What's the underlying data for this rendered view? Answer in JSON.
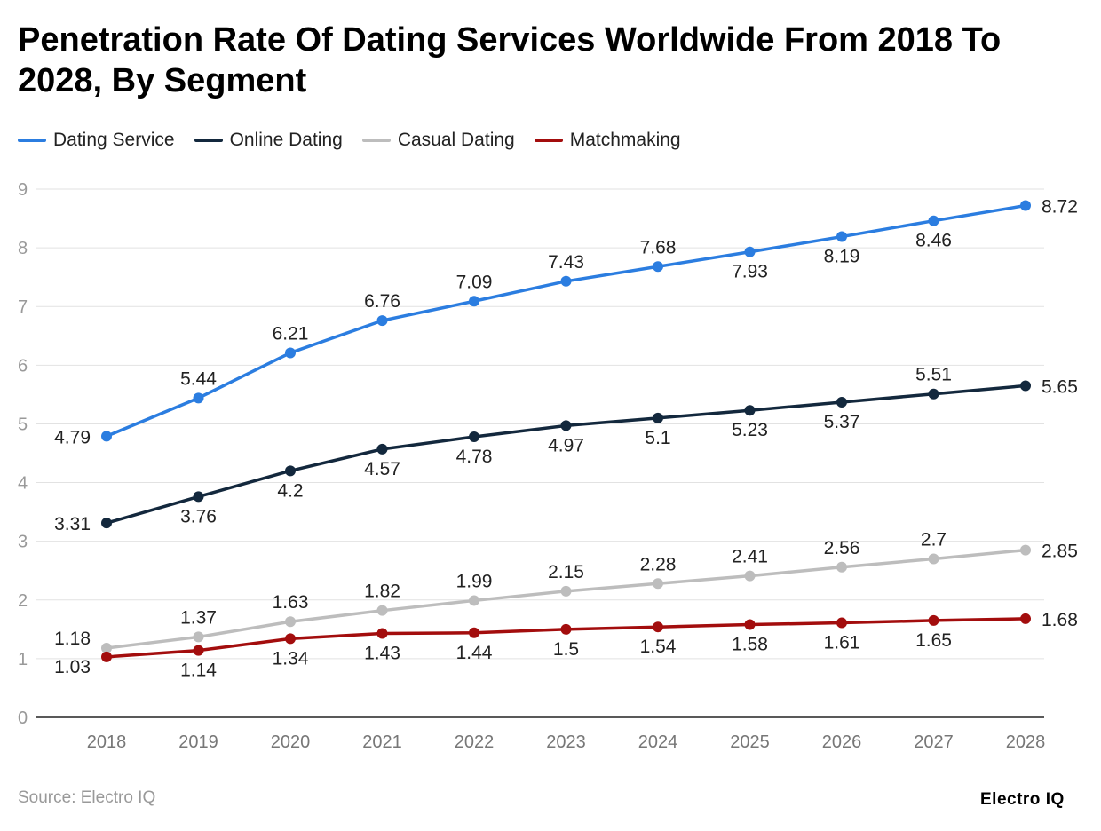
{
  "chart_data": {
    "type": "line",
    "title": "Penetration Rate Of Dating Services Worldwide From 2018 To 2028, By Segment",
    "xlabel": "",
    "ylabel": "",
    "categories": [
      "2018",
      "2019",
      "2020",
      "2021",
      "2022",
      "2023",
      "2024",
      "2025",
      "2026",
      "2027",
      "2028"
    ],
    "yticks": [
      "0",
      "1",
      "2",
      "3",
      "4",
      "5",
      "6",
      "7",
      "8",
      "9"
    ],
    "ylim": [
      0,
      9
    ],
    "grid": true,
    "legend_position": "top-left",
    "series": [
      {
        "name": "Dating Service",
        "color": "#2b7de0",
        "values": [
          4.79,
          5.44,
          6.21,
          6.76,
          7.09,
          7.43,
          7.68,
          7.93,
          8.19,
          8.46,
          8.72
        ]
      },
      {
        "name": "Online Dating",
        "color": "#13283d",
        "values": [
          3.31,
          3.76,
          4.2,
          4.57,
          4.78,
          4.97,
          5.1,
          5.23,
          5.37,
          5.51,
          5.65
        ]
      },
      {
        "name": "Casual Dating",
        "color": "#bdbdbd",
        "values": [
          1.18,
          1.37,
          1.63,
          1.82,
          1.99,
          2.15,
          2.28,
          2.41,
          2.56,
          2.7,
          2.85
        ]
      },
      {
        "name": "Matchmaking",
        "color": "#a30d0d",
        "values": [
          1.03,
          1.14,
          1.34,
          1.43,
          1.44,
          1.5,
          1.54,
          1.58,
          1.61,
          1.65,
          1.68
        ]
      }
    ]
  },
  "source": "Source: Electro IQ",
  "logo": "Electro IQ"
}
